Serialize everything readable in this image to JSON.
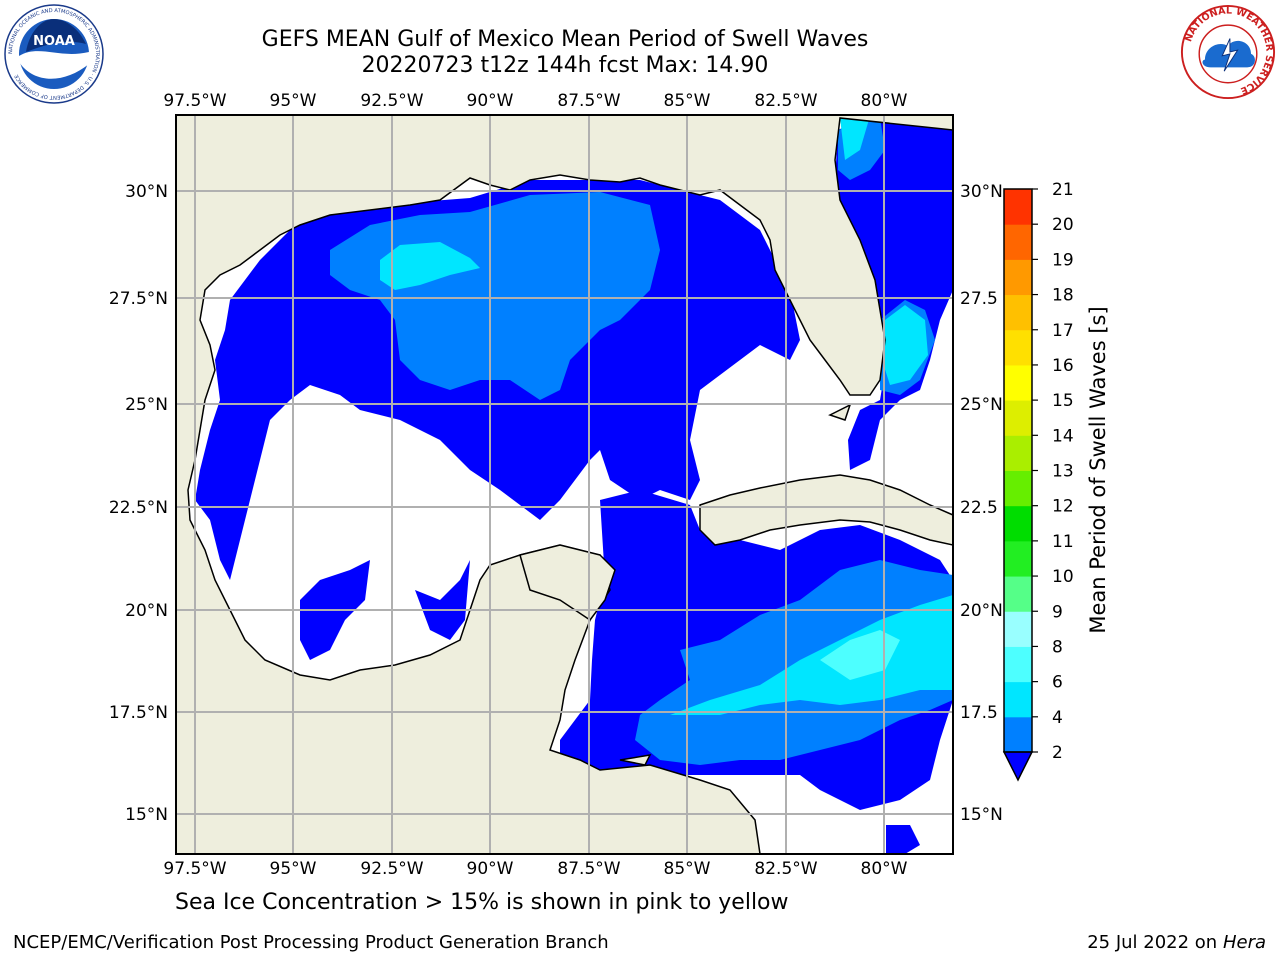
{
  "title": {
    "line1": "GEFS MEAN Gulf of Mexico Mean Period of Swell Waves",
    "line2": "20220723 t12z 144h fcst   Max: 14.90"
  },
  "map": {
    "lon_ticks": [
      "97.5°W",
      "95°W",
      "92.5°W",
      "90°W",
      "87.5°W",
      "85°W",
      "82.5°W",
      "80°W"
    ],
    "lat_ticks_left": [
      "30°N",
      "27.5°N",
      "25°N",
      "22.5°N",
      "20°N",
      "17.5°N",
      "15°N"
    ],
    "lat_ticks_right": [
      "30°N",
      "27.5",
      "25°N",
      "22.5",
      "20°N",
      "17.5",
      "15°N"
    ],
    "land_color": "#eeeedd",
    "grid_color": "#b0b0b0"
  },
  "colorbar": {
    "title": "Mean Period of Swell Waves [s]",
    "levels": [
      "2",
      "4",
      "6",
      "8",
      "9",
      "10",
      "11",
      "12",
      "13",
      "14",
      "15",
      "16",
      "17",
      "18",
      "19",
      "20",
      "21"
    ],
    "colors": [
      "#0080ff",
      "#00e6ff",
      "#4dffff",
      "#99ffff",
      "#55ff88",
      "#22ee22",
      "#00dd00",
      "#66ee00",
      "#aaee00",
      "#ddee00",
      "#ffff00",
      "#ffe000",
      "#ffc000",
      "#ff9900",
      "#ff6600",
      "#ff3300"
    ],
    "under_color": "#0000ff"
  },
  "note": "Sea Ice Concentration > 15% is shown in pink to yellow",
  "footer": {
    "left": "NCEP/EMC/Verification Post Processing Product Generation Branch",
    "right_prefix": "25 Jul 2022 on",
    "right_host": "Hera"
  },
  "logos": {
    "noaa_text": "NOAA",
    "noaa_ring": "NATIONAL OCEANIC AND ATMOSPHERIC ADMINISTRATION · U.S. DEPARTMENT OF COMMERCE",
    "nws_ring": "NATIONAL WEATHER SERVICE"
  }
}
